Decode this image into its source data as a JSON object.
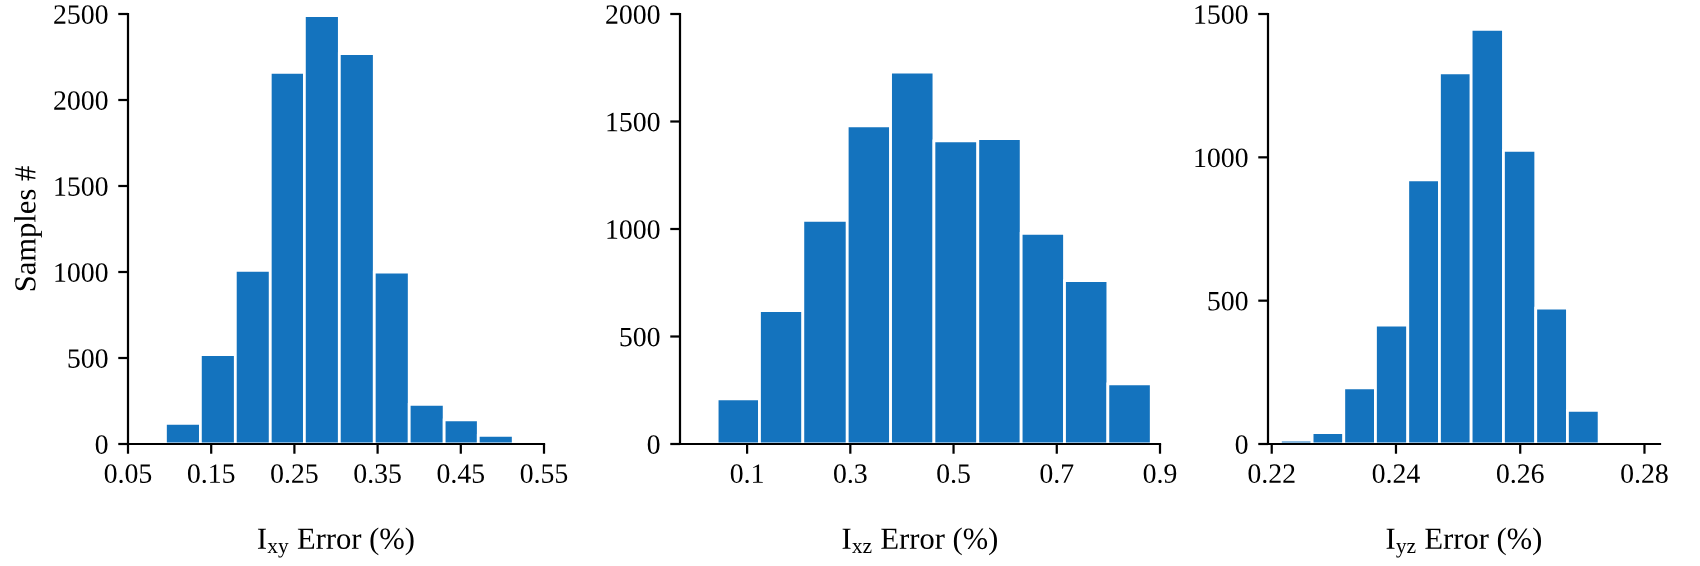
{
  "chart_data": [
    {
      "type": "histogram",
      "xlabel": "I$_{xy}$ Error (%)",
      "ylabel": "Samples #",
      "color": "#1473be",
      "bins": [
        0.095,
        0.137,
        0.179,
        0.221,
        0.262,
        0.304,
        0.346,
        0.388,
        0.43,
        0.471,
        0.513
      ],
      "values": [
        120,
        520,
        1010,
        2160,
        2490,
        2270,
        1000,
        230,
        140,
        50
      ],
      "xlim": [
        0.05,
        0.55
      ],
      "xticks": [
        0.05,
        0.15,
        0.25,
        0.35,
        0.45,
        0.55
      ],
      "ylim": [
        0,
        2500
      ],
      "yticks": [
        0,
        500,
        1000,
        1500,
        2000,
        2500
      ],
      "grid": false
    },
    {
      "type": "histogram",
      "xlabel": "I$_{xz}$ Error (%)",
      "color": "#1473be",
      "bins": [
        0.042,
        0.124,
        0.208,
        0.294,
        0.378,
        0.462,
        0.547,
        0.631,
        0.715,
        0.799,
        0.883
      ],
      "values": [
        210,
        620,
        1040,
        1480,
        1730,
        1410,
        1420,
        980,
        760,
        280
      ],
      "xlim": [
        -0.03,
        0.9
      ],
      "xticks": [
        0.1,
        0.3,
        0.5,
        0.7,
        0.9
      ],
      "ylim": [
        0,
        2000
      ],
      "yticks": [
        0,
        500,
        1000,
        1500,
        2000
      ],
      "grid": false
    },
    {
      "type": "histogram",
      "xlabel": "I$_{yz}$ Error (%)",
      "color": "#1473be",
      "bins": [
        0.2214,
        0.2265,
        0.2316,
        0.2367,
        0.2419,
        0.247,
        0.2521,
        0.2573,
        0.2625,
        0.2676,
        0.2727
      ],
      "values": [
        14,
        40,
        196,
        415,
        921,
        1295,
        1446,
        1024,
        474,
        117
      ],
      "xlim": [
        0.2194,
        0.2825
      ],
      "xticks": [
        0.22,
        0.24,
        0.26,
        0.28
      ],
      "ylim": [
        0,
        1500
      ],
      "yticks": [
        0,
        500,
        1000,
        1500
      ],
      "grid": false
    }
  ]
}
